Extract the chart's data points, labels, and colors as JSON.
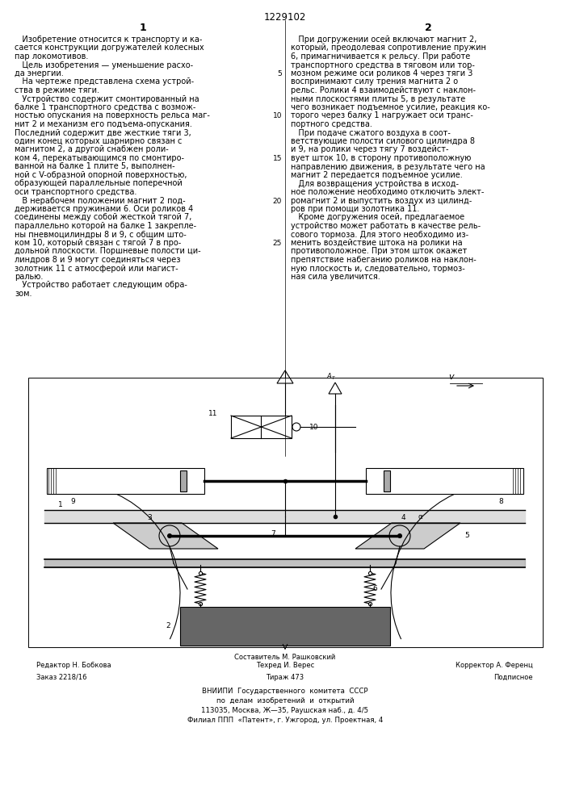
{
  "patent_number": "1229102",
  "col1_header": "1",
  "col2_header": "2",
  "col1_text": [
    "   Изобретение относится к транспорту и ка-",
    "сается конструкции догружателей колесных",
    "пар локомотивов.",
    "   Цель изобретения — уменьшение расхо-",
    "да энергии.",
    "   На чертеже представлена схема устрой-",
    "ства в режиме тяги.",
    "   Устройство содержит смонтированный на",
    "балке 1 транспортного средства с возмож-",
    "ностью опускания на поверхность рельса маг-",
    "нит 2 и механизм его подъема-опускания.",
    "Последний содержит две жесткие тяги 3,",
    "один конец которых шарнирно связан с",
    "магнитом 2, а другой снабжен роли-",
    "ком 4, перекатывающимся по смонтиро-",
    "ванной на балке 1 плите 5, выполнен-",
    "ной с V-образной опорной поверхностью,",
    "образующей параллельные поперечной",
    "оси транспортного средства.",
    "   В нерабочем положении магнит 2 под-",
    "держивается пружинами 6. Оси роликов 4",
    "соединены между собой жесткой тягой 7,",
    "параллельно которой на балке 1 закрепле-",
    "ны пневмоцилиндры 8 и 9, с общим што-",
    "ком 10, который связан с тягой 7 в про-",
    "дольной плоскости. Поршневые полости ци-",
    "линдров 8 и 9 могут соединяться через",
    "золотник 11 с атмосферой или магист-",
    "ралью.",
    "   Устройство работает следующим обра-",
    "зом."
  ],
  "col2_text": [
    "   При догружении осей включают магнит 2,",
    "который, преодолевая сопротивление пружин",
    "6, примагничивается к рельсу. При работе",
    "транспортного средства в тяговом или тор-",
    "мозном режиме оси роликов 4 через тяги 3",
    "воспринимают силу трения магнита 2 о",
    "рельс. Ролики 4 взаимодействуют с наклон-",
    "ными плоскостями плиты 5, в результате",
    "чего возникает подъемное усилие, реакция ко-",
    "торого через балку 1 нагружает оси транс-",
    "портного средства.",
    "   При подаче сжатого воздуха в соот-",
    "ветствующие полости силового цилиндра 8",
    "и 9, на ролики через тягу 7 воздейст-",
    "вует шток 10, в сторону противоположную",
    "направлению движения, в результате чего на",
    "магнит 2 передается подъемное усилие.",
    "   Для возвращения устройства в исход-",
    "ное положение необходимо отключить элект-",
    "ромагнит 2 и выпустить воздух из цилинд-",
    "ров при помощи золотника 11.",
    "   Кроме догружения осей, предлагаемое",
    "устройство может работать в качестве рель-",
    "сового тормоза. Для этого необходимо из-",
    "менить воздействие штока на ролики на",
    "противоположное. При этом шток окажет",
    "препятствие набеганию роликов на наклон-",
    "ную плоскость и, следовательно, тормоз-",
    "ная сила увеличится."
  ],
  "line_numbers": [
    5,
    10,
    15,
    20,
    25
  ],
  "footer_left_1": "Редактор Н. Бобкова",
  "footer_left_2": "Заказ 2218/16",
  "footer_center_1": "Составитель М. Рашковский",
  "footer_center_2": "Техред И. Верес",
  "footer_center_3": "Тираж 473",
  "footer_right_1": "Корректор А. Ференц",
  "footer_right_2": "Подписное",
  "footer_vniip": [
    "ВНИИПИ  Государственного  комитета  СССР",
    "по  делам  изобретений  и  открытий",
    "113035, Москва, Ж—35, Раушская наб., д. 4/5",
    "Филиал ППП  «Патент», г. Ужгород, ул. Проектная, 4"
  ],
  "bg_color": "#ffffff",
  "text_color": "#000000"
}
